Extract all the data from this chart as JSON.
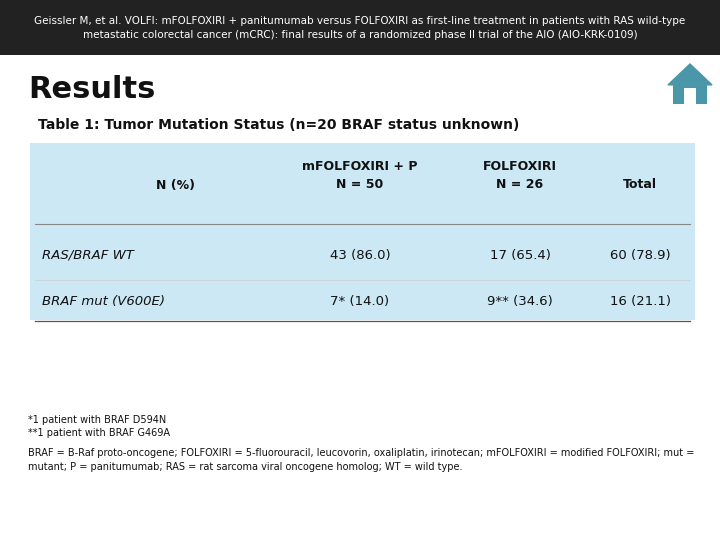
{
  "header_text": "Geissler M, et al. VOLFI: mFOLFOXIRI + panitumumab versus FOLFOXIRI as first-line treatment in patients with RAS wild-type\nmetastatic colorectal cancer (mCRC): final results of a randomized phase II trial of the AIO (AIO-KRK-0109)",
  "header_bg": "#222222",
  "header_fg": "#ffffff",
  "section_title": "Results",
  "table_title": "Table 1: Tumor Mutation Status (n=20 BRAF status unknown)",
  "table_bg": "#cce8f4",
  "col_headers": [
    "N (%)",
    "mFOLFOXIRI + P\nN = 50",
    "FOLFOXIRI\nN = 26",
    "Total"
  ],
  "row1_label": "RAS/BRAF WT",
  "row1_data": [
    "43 (86.0)",
    "17 (65.4)",
    "60 (78.9)"
  ],
  "row2_label": "BRAF mut (V600E)",
  "row2_data": [
    "7* (14.0)",
    "9** (34.6)",
    "16 (21.1)"
  ],
  "footnote1": "*1 patient with BRAF D594N",
  "footnote2": "**1 patient with BRAF G469A",
  "footnote3": "BRAF = B-Raf proto-oncogene; FOLFOXIRI = 5-fluorouracil, leucovorin, oxaliplatin, irinotecan; mFOLFOXIRI = modified FOLFOXIRI; mut =\nmutant; P = panitumumab; RAS = rat sarcoma viral oncogene homolog; WT = wild type.",
  "bg_color": "#ffffff",
  "home_color": "#4a97aa",
  "line_color": "#aaaaaa",
  "header_fontsize": 7.5,
  "title_fontsize": 22,
  "table_title_fontsize": 10,
  "table_text_fontsize": 9,
  "footnote_fontsize": 7
}
